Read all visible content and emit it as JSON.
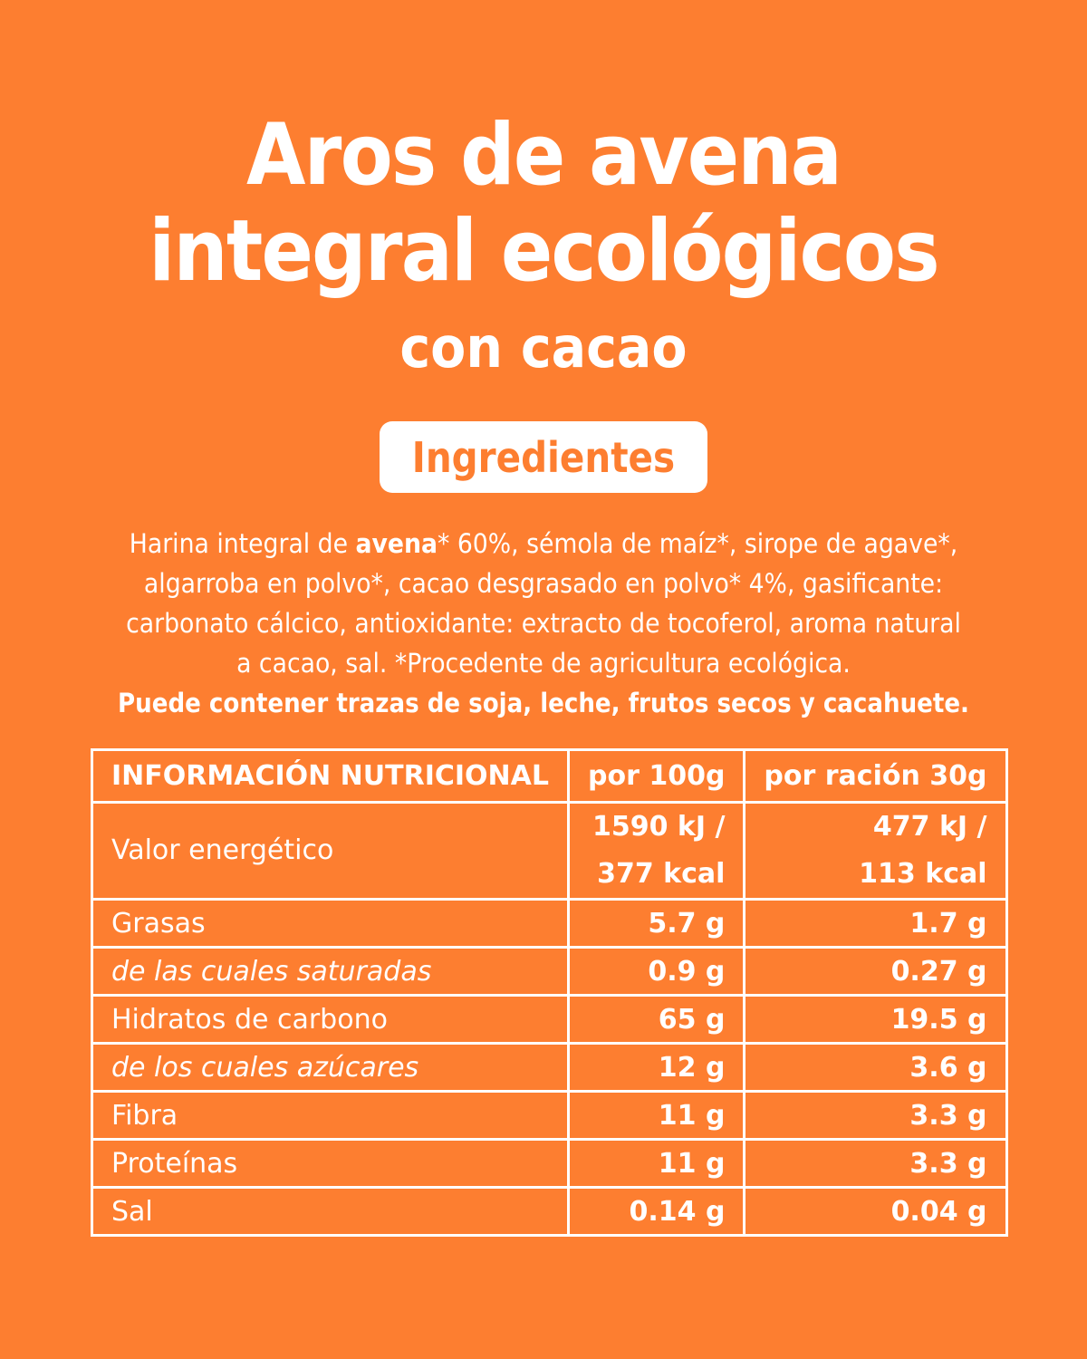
{
  "title": {
    "line1": "Aros de avena",
    "line2": "integral ecológicos",
    "subtitle": "con cacao"
  },
  "ingredients_badge": "Ingredientes",
  "ingredients": {
    "line1_pre": "Harina integral de ",
    "line1_bold": "avena",
    "line1_post": "* 60%, sémola de maíz*, sirope de agave*,",
    "line2": "algarroba en polvo*, cacao desgrasado en polvo* 4%, gasificante:",
    "line3": "carbonato cálcico, antioxidante: extracto de tocoferol, aroma natural",
    "line4": "a cacao, sal.  *Procedente de agricultura ecológica.",
    "allergens": "Puede contener trazas de soja, leche, frutos secos y cacahuete."
  },
  "nutrition": {
    "headers": [
      "INFORMACIÓN NUTRICIONAL",
      "por 100g",
      "por ración 30g"
    ],
    "energy": {
      "label": "Valor energético",
      "per100_kj": "1590 kJ /",
      "per100_kcal": "377 kcal",
      "perServing_kj": "477 kJ /",
      "perServing_kcal": "113 kcal"
    },
    "rows": [
      {
        "label": "Grasas",
        "per100": "5.7 g",
        "perServing": "1.7 g",
        "italic": false
      },
      {
        "label": "de las cuales saturadas",
        "per100": "0.9 g",
        "perServing": "0.27 g",
        "italic": true
      },
      {
        "label": "Hidratos de carbono",
        "per100": "65 g",
        "perServing": "19.5 g",
        "italic": false
      },
      {
        "label": "de los cuales azúcares",
        "per100": "12 g",
        "perServing": "3.6 g",
        "italic": true
      },
      {
        "label": "Fibra",
        "per100": "11 g",
        "perServing": "3.3 g",
        "italic": false
      },
      {
        "label": "Proteínas",
        "per100": "11 g",
        "perServing": "3.3 g",
        "italic": false
      },
      {
        "label": "Sal",
        "per100": "0.14 g",
        "perServing": "0.04 g",
        "italic": false
      }
    ]
  },
  "colors": {
    "background": "#fd7e30",
    "foreground": "#ffffff"
  }
}
